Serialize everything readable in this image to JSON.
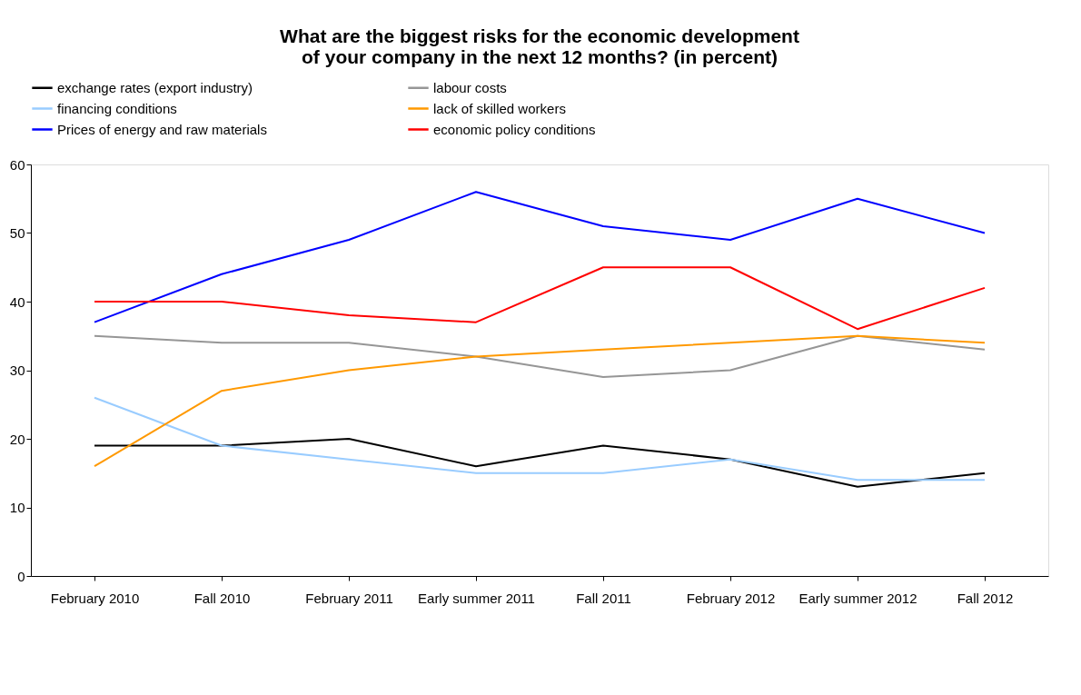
{
  "chart_data": {
    "type": "line",
    "title": [
      "What are the biggest risks for the economic development",
      "of your company in the next 12 months? (in percent)"
    ],
    "categories": [
      "February 2010",
      "Fall 2010",
      "February 2011",
      "Early summer 2011",
      "Fall 2011",
      "February 2012",
      "Early summer 2012",
      "Fall 2012"
    ],
    "series": [
      {
        "name": "exchange rates (export industry)",
        "color": "#000000",
        "values": [
          19,
          19,
          20,
          16,
          19,
          17,
          13,
          15
        ]
      },
      {
        "name": "labour costs",
        "color": "#969696",
        "values": [
          35,
          34,
          34,
          32,
          29,
          30,
          35,
          33
        ]
      },
      {
        "name": "financing conditions",
        "color": "#99ccff",
        "values": [
          26,
          19,
          17,
          15,
          15,
          17,
          14,
          14
        ]
      },
      {
        "name": "lack of skilled workers",
        "color": "#ff9900",
        "values": [
          16,
          27,
          30,
          32,
          33,
          34,
          35,
          34
        ]
      },
      {
        "name": "Prices of energy and raw materials",
        "color": "#0000ff",
        "values": [
          37,
          44,
          49,
          56,
          51,
          49,
          55,
          50
        ]
      },
      {
        "name": "economic policy conditions",
        "color": "#ff0000",
        "values": [
          40,
          40,
          38,
          37,
          45,
          45,
          36,
          42
        ]
      }
    ],
    "ylim": [
      0,
      60
    ],
    "yticks": [
      0,
      10,
      20,
      30,
      40,
      50,
      60
    ],
    "grid": false,
    "legend": "top",
    "marker": "none",
    "line_style": "solid"
  }
}
